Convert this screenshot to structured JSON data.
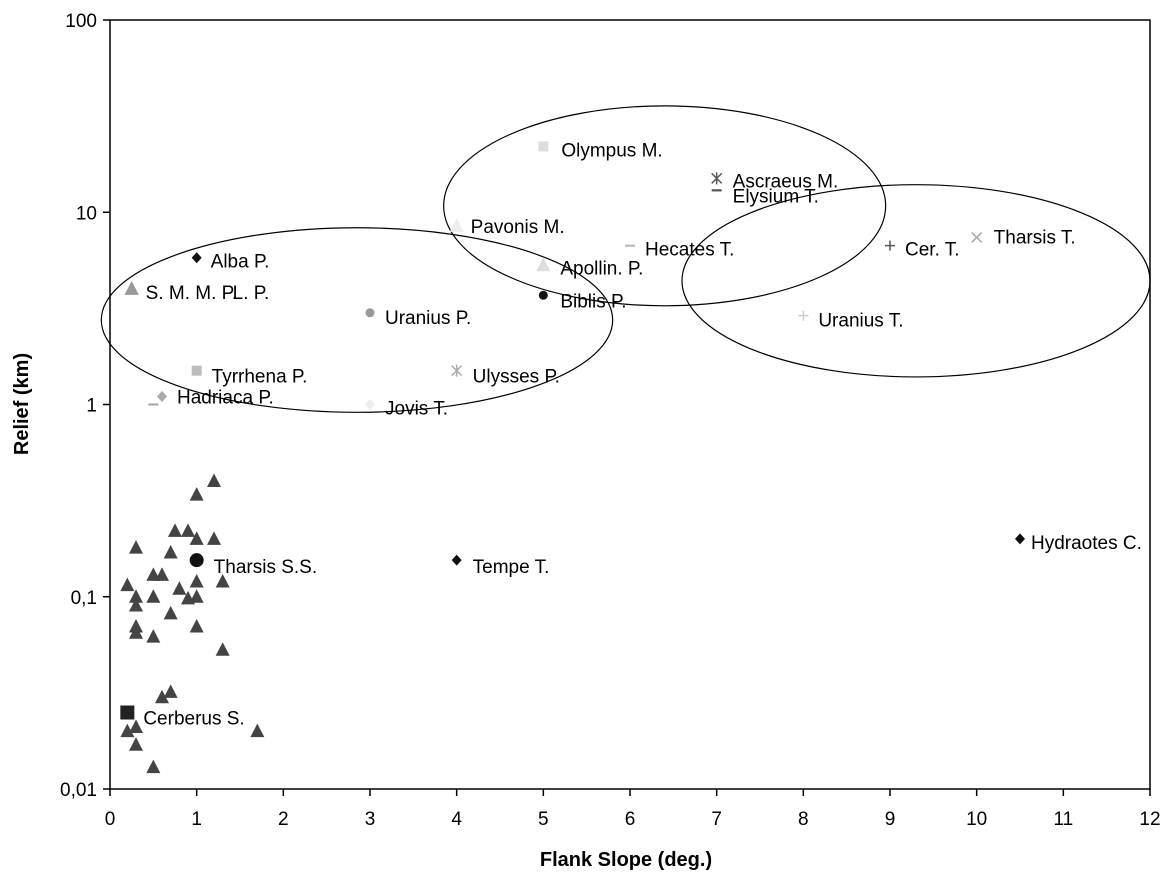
{
  "chart_data": {
    "type": "scatter",
    "xlabel": "Flank Slope (deg.)",
    "ylabel": "Relief (km)",
    "xlim": [
      0,
      12
    ],
    "ylim": [
      0.01,
      100
    ],
    "y_scale": "log",
    "grid": false,
    "x_ticks": [
      0,
      1,
      2,
      3,
      4,
      5,
      6,
      7,
      8,
      9,
      10,
      11,
      12
    ],
    "y_ticks": [
      {
        "value": 0.01,
        "label": "0,01"
      },
      {
        "value": 0.1,
        "label": "0,1"
      },
      {
        "value": 1,
        "label": "1"
      },
      {
        "value": 10,
        "label": "10"
      },
      {
        "value": 100,
        "label": "100"
      }
    ],
    "labeled_points": [
      {
        "label": "Olympus M.",
        "x": 5.0,
        "y": 22,
        "marker": "square",
        "color": "#dddddd"
      },
      {
        "label": "Ascraeus M.",
        "x": 7.0,
        "y": 15,
        "marker": "star",
        "color": "#555555"
      },
      {
        "label": "Elysium T.",
        "x": 7.0,
        "y": 13,
        "marker": "dash",
        "color": "#555555"
      },
      {
        "label": "Pavonis M.",
        "x": 4.0,
        "y": 8.5,
        "marker": "triangle",
        "color": "#eeeeee"
      },
      {
        "label": "Hecates T.",
        "x": 6.0,
        "y": 6.7,
        "marker": "dash",
        "color": "#bbbbbb"
      },
      {
        "label": "Alba P.",
        "x": 1.0,
        "y": 5.8,
        "marker": "diamond",
        "color": "#111111"
      },
      {
        "label": "Apollin. P.",
        "x": 5.0,
        "y": 5.3,
        "marker": "triangle",
        "color": "#dddddd"
      },
      {
        "label": "S. M. M. P.",
        "x": 0.25,
        "y": 4.0,
        "marker": "triangle",
        "color": "#777777"
      },
      {
        "label": "L. P.",
        "x": 0.25,
        "y": 4.0,
        "marker": "triangle",
        "color": "#999999"
      },
      {
        "label": "Biblis P.",
        "x": 5.0,
        "y": 3.7,
        "marker": "circle",
        "color": "#111111"
      },
      {
        "label": "Uranius P.",
        "x": 3.0,
        "y": 3.0,
        "marker": "circle",
        "color": "#999999"
      },
      {
        "label": "Cer. T.",
        "x": 9.0,
        "y": 6.7,
        "marker": "plus",
        "color": "#555555"
      },
      {
        "label": "Tharsis T.",
        "x": 10.0,
        "y": 7.4,
        "marker": "x",
        "color": "#aaaaaa"
      },
      {
        "label": "Uranius T.",
        "x": 8.0,
        "y": 2.9,
        "marker": "plus",
        "color": "#cccccc"
      },
      {
        "label": "Tyrrhena P.",
        "x": 1.0,
        "y": 1.5,
        "marker": "square",
        "color": "#bbbbbb"
      },
      {
        "label": "Ulysses P.",
        "x": 4.0,
        "y": 1.5,
        "marker": "star",
        "color": "#aaaaaa"
      },
      {
        "label": "Hadriaca P.",
        "x": 0.6,
        "y": 1.1,
        "marker": "diamond",
        "color": "#aaaaaa"
      },
      {
        "label": "Jovis T.",
        "x": 3.0,
        "y": 1.0,
        "marker": "diamond",
        "color": "#eeeeee"
      },
      {
        "label": "Tharsis S.S.",
        "x": 1.0,
        "y": 0.155,
        "marker": "big-circle",
        "color": "#111111"
      },
      {
        "label": "Tempe T.",
        "x": 4.0,
        "y": 0.155,
        "marker": "diamond",
        "color": "#111111"
      },
      {
        "label": "Hydraotes C.",
        "x": 10.5,
        "y": 0.2,
        "marker": "diamond",
        "color": "#111111"
      },
      {
        "label": "Cerberus S.",
        "x": 0.2,
        "y": 0.025,
        "marker": "big-square",
        "color": "#222222"
      }
    ],
    "extra_markers": [
      {
        "x": 0.5,
        "y": 1.0,
        "marker": "dash",
        "color": "#aaaaaa"
      }
    ],
    "small_shields": {
      "marker": "triangle",
      "color": "#444444",
      "points": [
        [
          0.2,
          0.115
        ],
        [
          0.3,
          0.18
        ],
        [
          0.3,
          0.1
        ],
        [
          0.3,
          0.09
        ],
        [
          0.3,
          0.07
        ],
        [
          0.3,
          0.065
        ],
        [
          0.5,
          0.13
        ],
        [
          0.5,
          0.1
        ],
        [
          0.5,
          0.062
        ],
        [
          0.6,
          0.13
        ],
        [
          0.7,
          0.17
        ],
        [
          0.7,
          0.082
        ],
        [
          0.75,
          0.22
        ],
        [
          0.8,
          0.11
        ],
        [
          0.9,
          0.22
        ],
        [
          0.9,
          0.098
        ],
        [
          1.0,
          0.34
        ],
        [
          1.0,
          0.2
        ],
        [
          1.0,
          0.12
        ],
        [
          1.0,
          0.1
        ],
        [
          1.0,
          0.07
        ],
        [
          1.2,
          0.4
        ],
        [
          1.2,
          0.2
        ],
        [
          1.3,
          0.12
        ],
        [
          1.3,
          0.053
        ],
        [
          0.6,
          0.03
        ],
        [
          0.7,
          0.032
        ],
        [
          0.2,
          0.02
        ],
        [
          0.3,
          0.021
        ],
        [
          0.3,
          0.017
        ],
        [
          0.5,
          0.013
        ],
        [
          1.7,
          0.02
        ]
      ]
    },
    "ellipses": [
      {
        "cx": 2.85,
        "cy": 2.75,
        "rx_deg": 2.95,
        "ry_log": 0.48
      },
      {
        "cx": 6.4,
        "cy": 10.8,
        "rx_deg": 2.55,
        "ry_log": 0.52
      },
      {
        "cx": 9.3,
        "cy": 4.4,
        "rx_deg": 2.7,
        "ry_log": 0.5
      }
    ]
  }
}
